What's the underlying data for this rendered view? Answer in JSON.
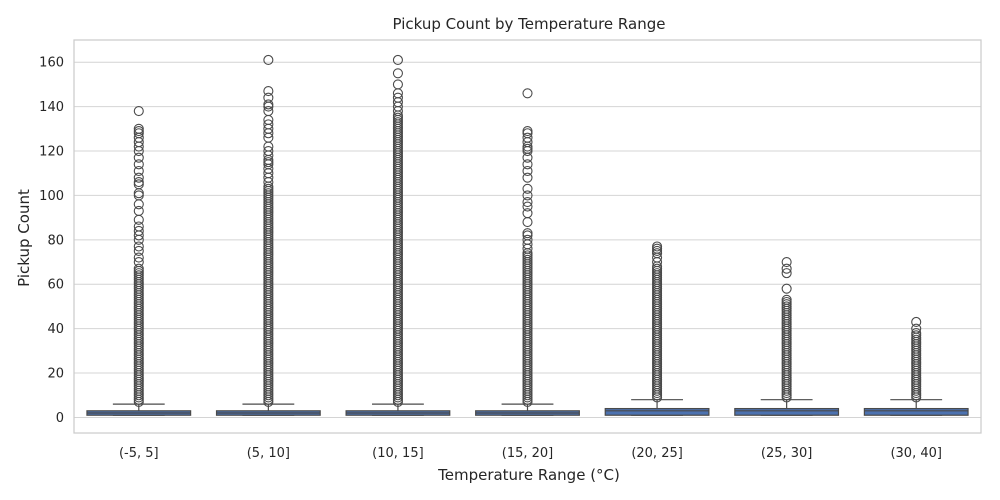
{
  "chart_data": {
    "type": "box",
    "title": "Pickup Count by Temperature Range",
    "xlabel": "Temperature Range (°C)",
    "ylabel": "Pickup Count",
    "ylim": [
      -7,
      170
    ],
    "yticks": [
      0,
      20,
      40,
      60,
      80,
      100,
      120,
      140,
      160
    ],
    "grid": true,
    "colors": {
      "box": "#4c72b0",
      "edge": "#4a4a4a",
      "grid": "#d4d4d4",
      "frame": "#cccccc"
    },
    "categories": [
      "(-5, 5]",
      "(5, 10]",
      "(10, 15]",
      "(15, 20]",
      "(20, 25]",
      "(25, 30]",
      "(30, 40]"
    ],
    "boxes": [
      {
        "category": "(-5, 5]",
        "whisker_low": 1,
        "q1": 1,
        "median": 2,
        "q3": 3,
        "whisker_high": 6,
        "outliers": [
          7,
          8,
          9,
          10,
          11,
          12,
          13,
          14,
          15,
          16,
          17,
          18,
          19,
          20,
          21,
          22,
          23,
          24,
          25,
          26,
          27,
          28,
          29,
          30,
          31,
          32,
          33,
          34,
          35,
          36,
          37,
          38,
          39,
          40,
          41,
          42,
          43,
          44,
          45,
          46,
          47,
          48,
          49,
          50,
          51,
          52,
          53,
          54,
          55,
          56,
          57,
          58,
          59,
          60,
          61,
          62,
          63,
          64,
          65,
          66,
          67,
          70,
          72,
          75,
          77,
          80,
          82,
          84,
          86,
          89,
          93,
          96,
          100,
          101,
          105,
          106,
          108,
          111,
          114,
          117,
          120,
          122,
          124,
          126,
          128,
          129,
          130,
          138
        ]
      },
      {
        "category": "(5, 10]",
        "whisker_low": 1,
        "q1": 1,
        "median": 2,
        "q3": 3,
        "whisker_high": 6,
        "outliers": [
          7,
          8,
          9,
          10,
          11,
          12,
          13,
          14,
          15,
          16,
          17,
          18,
          19,
          20,
          21,
          22,
          23,
          24,
          25,
          26,
          27,
          28,
          29,
          30,
          31,
          32,
          33,
          34,
          35,
          36,
          37,
          38,
          39,
          40,
          41,
          42,
          43,
          44,
          45,
          46,
          47,
          48,
          49,
          50,
          51,
          52,
          53,
          54,
          55,
          56,
          57,
          58,
          59,
          60,
          61,
          62,
          63,
          64,
          65,
          66,
          67,
          68,
          69,
          70,
          71,
          72,
          73,
          74,
          75,
          76,
          77,
          78,
          79,
          80,
          81,
          82,
          83,
          84,
          85,
          86,
          87,
          88,
          89,
          90,
          91,
          92,
          93,
          94,
          95,
          96,
          97,
          98,
          99,
          100,
          101,
          102,
          103,
          104,
          106,
          108,
          110,
          112,
          114,
          115,
          116,
          118,
          120,
          122,
          126,
          128,
          130,
          132,
          134,
          138,
          140,
          141,
          144,
          147,
          161
        ]
      },
      {
        "category": "(10, 15]",
        "whisker_low": 1,
        "q1": 1,
        "median": 2,
        "q3": 3,
        "whisker_high": 6,
        "outliers": [
          7,
          8,
          9,
          10,
          11,
          12,
          13,
          14,
          15,
          16,
          17,
          18,
          19,
          20,
          21,
          22,
          23,
          24,
          25,
          26,
          27,
          28,
          29,
          30,
          31,
          32,
          33,
          34,
          35,
          36,
          37,
          38,
          39,
          40,
          41,
          42,
          43,
          44,
          45,
          46,
          47,
          48,
          49,
          50,
          51,
          52,
          53,
          54,
          55,
          56,
          57,
          58,
          59,
          60,
          61,
          62,
          63,
          64,
          65,
          66,
          67,
          68,
          69,
          70,
          71,
          72,
          73,
          74,
          75,
          76,
          77,
          78,
          79,
          80,
          81,
          82,
          83,
          84,
          85,
          86,
          87,
          88,
          89,
          90,
          91,
          92,
          93,
          94,
          95,
          96,
          97,
          98,
          99,
          100,
          101,
          102,
          103,
          104,
          105,
          106,
          107,
          108,
          109,
          110,
          111,
          112,
          113,
          114,
          115,
          116,
          117,
          118,
          119,
          120,
          121,
          122,
          123,
          124,
          125,
          126,
          127,
          128,
          129,
          130,
          131,
          132,
          133,
          134,
          135,
          136,
          138,
          140,
          142,
          144,
          146,
          150,
          155,
          161
        ]
      },
      {
        "category": "(15, 20]",
        "whisker_low": 1,
        "q1": 1,
        "median": 2,
        "q3": 3,
        "whisker_high": 6,
        "outliers": [
          7,
          8,
          9,
          10,
          11,
          12,
          13,
          14,
          15,
          16,
          17,
          18,
          19,
          20,
          21,
          22,
          23,
          24,
          25,
          26,
          27,
          28,
          29,
          30,
          31,
          32,
          33,
          34,
          35,
          36,
          37,
          38,
          39,
          40,
          41,
          42,
          43,
          44,
          45,
          46,
          47,
          48,
          49,
          50,
          51,
          52,
          53,
          54,
          55,
          56,
          57,
          58,
          59,
          60,
          61,
          62,
          63,
          64,
          65,
          66,
          67,
          68,
          69,
          70,
          71,
          72,
          73,
          74,
          76,
          78,
          80,
          82,
          83,
          88,
          92,
          95,
          97,
          100,
          103,
          108,
          111,
          114,
          117,
          120,
          121,
          122,
          124,
          126,
          128,
          129,
          146
        ]
      },
      {
        "category": "(20, 25]",
        "whisker_low": 1,
        "q1": 1,
        "median": 3,
        "q3": 4,
        "whisker_high": 8,
        "outliers": [
          9,
          10,
          11,
          12,
          13,
          14,
          15,
          16,
          17,
          18,
          19,
          20,
          21,
          22,
          23,
          24,
          25,
          26,
          27,
          28,
          29,
          30,
          31,
          32,
          33,
          34,
          35,
          36,
          37,
          38,
          39,
          40,
          41,
          42,
          43,
          44,
          45,
          46,
          47,
          48,
          49,
          50,
          51,
          52,
          53,
          54,
          55,
          56,
          57,
          58,
          59,
          60,
          61,
          62,
          63,
          64,
          65,
          66,
          67,
          68,
          70,
          72,
          74,
          75,
          76,
          77
        ]
      },
      {
        "category": "(25, 30]",
        "whisker_low": 1,
        "q1": 1,
        "median": 3,
        "q3": 4,
        "whisker_high": 8,
        "outliers": [
          9,
          10,
          11,
          12,
          13,
          14,
          15,
          16,
          17,
          18,
          19,
          20,
          21,
          22,
          23,
          24,
          25,
          26,
          27,
          28,
          29,
          30,
          31,
          32,
          33,
          34,
          35,
          36,
          37,
          38,
          39,
          40,
          41,
          42,
          43,
          44,
          45,
          46,
          47,
          48,
          49,
          50,
          51,
          52,
          53,
          58,
          65,
          67,
          70
        ]
      },
      {
        "category": "(30, 40]",
        "whisker_low": 1,
        "q1": 1,
        "median": 3,
        "q3": 4,
        "whisker_high": 8,
        "outliers": [
          9,
          10,
          11,
          12,
          13,
          14,
          15,
          16,
          17,
          18,
          19,
          20,
          21,
          22,
          23,
          24,
          25,
          26,
          27,
          28,
          29,
          30,
          31,
          32,
          33,
          34,
          35,
          36,
          37,
          38,
          40,
          43
        ]
      }
    ]
  }
}
